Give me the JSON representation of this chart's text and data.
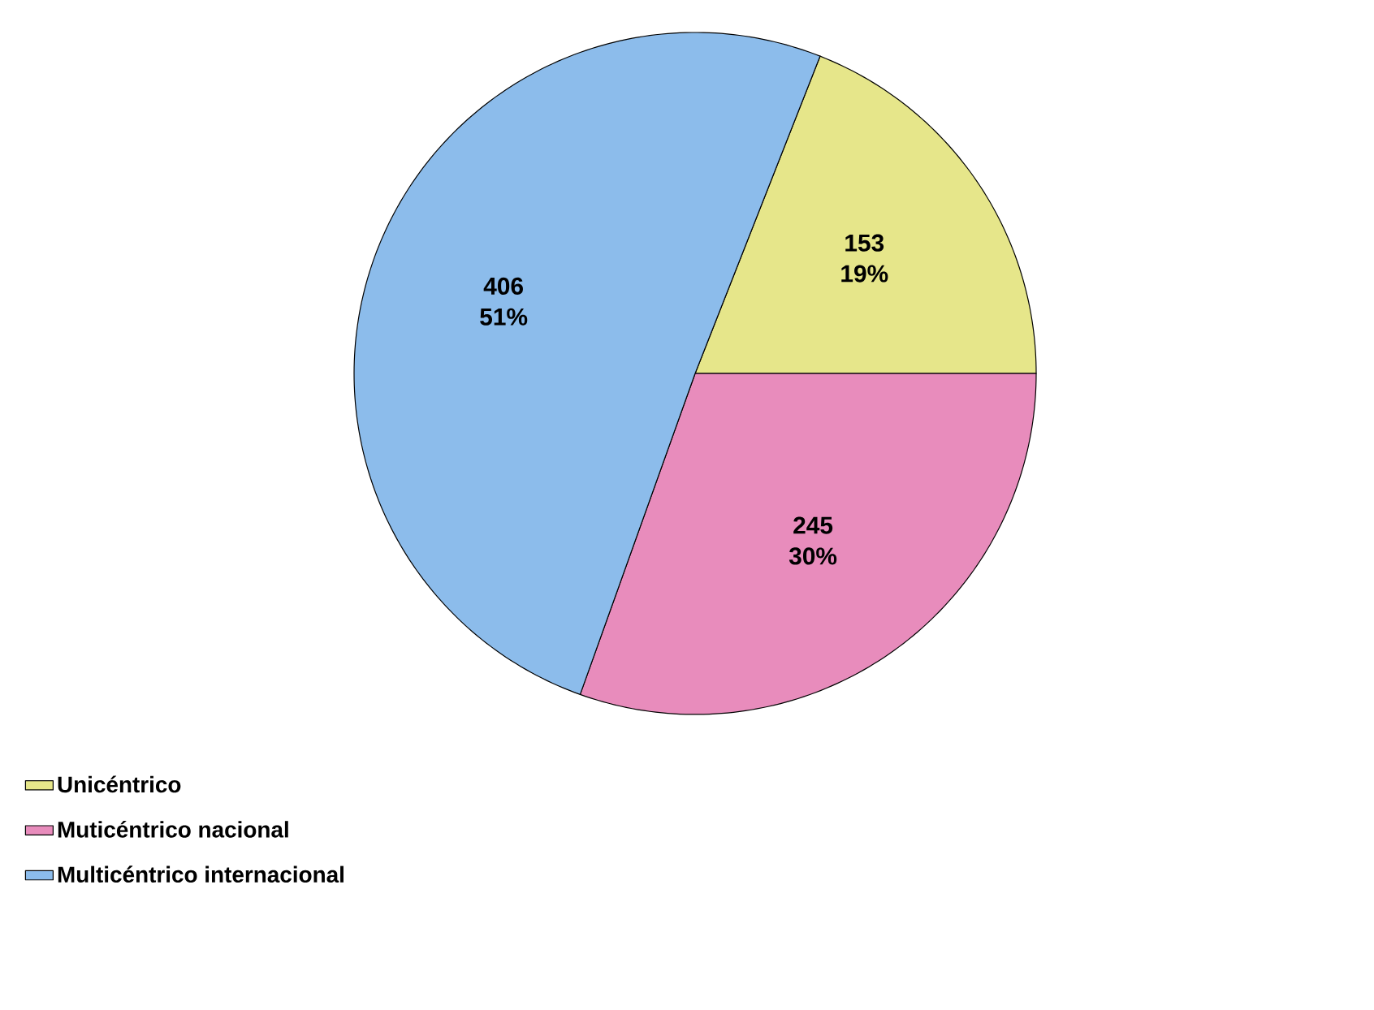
{
  "chart_data": {
    "type": "pie",
    "categories": [
      "Unicéntrico",
      "Muticéntrico nacional",
      "Multicéntrico internacional"
    ],
    "values": [
      153,
      245,
      406
    ],
    "value_labels": [
      "153 19%",
      "245 30%",
      "406 51%"
    ],
    "colors": [
      "#e6e68a",
      "#e88cbc",
      "#8cbceb"
    ],
    "legend": "bottom left"
  }
}
